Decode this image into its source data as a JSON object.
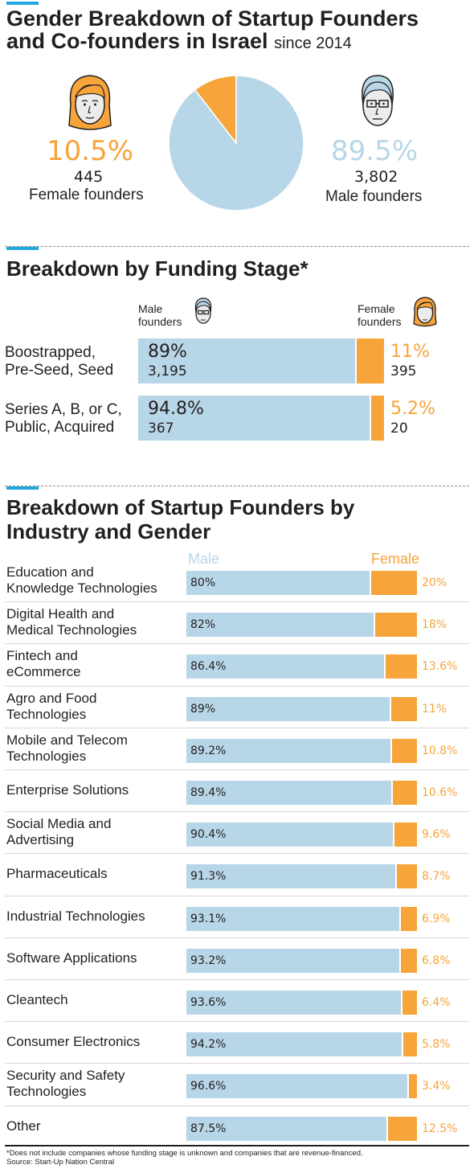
{
  "colors": {
    "male": "#b7d6e8",
    "female": "#f7a43a",
    "accent": "#22a7df",
    "text": "#231f20"
  },
  "header": {
    "title_line1": "Gender Breakdown of Startup Founders",
    "title_line2": "and Co-founders in Israel",
    "since": "since 2014"
  },
  "summary": {
    "female": {
      "pct": "10.5%",
      "count": "445",
      "label": "Female founders",
      "icon": "female-face-icon"
    },
    "male": {
      "pct": "89.5%",
      "count": "3,802",
      "label": "Male founders",
      "icon": "male-face-icon"
    }
  },
  "funding": {
    "title": "Breakdown by Funding Stage*",
    "male_header_line1": "Male",
    "male_header_line2": "founders",
    "female_header_line1": "Female",
    "female_header_line2": "founders"
  },
  "industry": {
    "title_line1": "Breakdown of Startup Founders by",
    "title_line2": "Industry and Gender",
    "male_header": "Male",
    "female_header": "Female"
  },
  "chart_data": [
    {
      "type": "pie",
      "title": "Gender Breakdown of Startup Founders and Co-founders in Israel since 2014",
      "slices": [
        {
          "name": "Female founders",
          "value": 10.5,
          "count": 445,
          "color": "#f7a43a"
        },
        {
          "name": "Male founders",
          "value": 89.5,
          "count": 3802,
          "color": "#b7d6e8"
        }
      ]
    },
    {
      "type": "bar",
      "stacked": true,
      "orientation": "horizontal",
      "title": "Breakdown by Funding Stage*",
      "categories": [
        {
          "line1": "Boostrapped,",
          "line2": "Pre-Seed, Seed"
        },
        {
          "line1": "Series A, B, or C,",
          "line2": "Public, Acquired"
        }
      ],
      "series": [
        {
          "name": "Male founders",
          "values": [
            89,
            94.8
          ],
          "labels": [
            "89%",
            "94.8%"
          ],
          "counts": [
            "3,195",
            "367"
          ],
          "color": "#b7d6e8"
        },
        {
          "name": "Female founders",
          "values": [
            11,
            5.2
          ],
          "labels": [
            "11%",
            "5.2%"
          ],
          "counts": [
            "395",
            "20"
          ],
          "color": "#f7a43a"
        }
      ]
    },
    {
      "type": "bar",
      "stacked": true,
      "orientation": "horizontal",
      "title": "Breakdown of Startup Founders by Industry and Gender",
      "categories": [
        {
          "line1": "Education and",
          "line2": "Knowledge Technologies"
        },
        {
          "line1": "Digital Health and",
          "line2": "Medical Technologies"
        },
        {
          "line1": "Fintech and",
          "line2": "eCommerce"
        },
        {
          "line1": "Agro and Food",
          "line2": "Technologies"
        },
        {
          "line1": "Mobile and Telecom",
          "line2": "Technologies"
        },
        {
          "line1": "Enterprise Solutions",
          "line2": ""
        },
        {
          "line1": "Social Media and",
          "line2": "Advertising"
        },
        {
          "line1": "Pharmaceuticals",
          "line2": ""
        },
        {
          "line1": "Industrial Technologies",
          "line2": ""
        },
        {
          "line1": "Software Applications",
          "line2": ""
        },
        {
          "line1": "Cleantech",
          "line2": ""
        },
        {
          "line1": "Consumer Electronics",
          "line2": ""
        },
        {
          "line1": "Security and Safety",
          "line2": "Technologies"
        },
        {
          "line1": "Other",
          "line2": ""
        }
      ],
      "series": [
        {
          "name": "Male",
          "values": [
            80,
            82,
            86.4,
            89,
            89.2,
            89.4,
            90.4,
            91.3,
            93.1,
            93.2,
            93.6,
            94.2,
            96.6,
            87.5
          ],
          "labels": [
            "80%",
            "82%",
            "86.4%",
            "89%",
            "89.2%",
            "89.4%",
            "90.4%",
            "91.3%",
            "93.1%",
            "93.2%",
            "93.6%",
            "94.2%",
            "96.6%",
            "87.5%"
          ]
        },
        {
          "name": "Female",
          "values": [
            20,
            18,
            13.6,
            11,
            10.8,
            10.6,
            9.6,
            8.7,
            6.9,
            6.8,
            6.4,
            5.8,
            3.4,
            12.5
          ],
          "labels": [
            "20%",
            "18%",
            "13.6%",
            "11%",
            "10.8%",
            "10.6%",
            "9.6%",
            "8.7%",
            "6.9%",
            "6.8%",
            "6.4%",
            "5.8%",
            "3.4%",
            "12.5%"
          ]
        }
      ]
    }
  ],
  "footnote": {
    "line1": "*Does not include companies whose funding stage is unknown and companies that are revenue-financed.",
    "line2": "Source: Start-Up Nation Central"
  }
}
